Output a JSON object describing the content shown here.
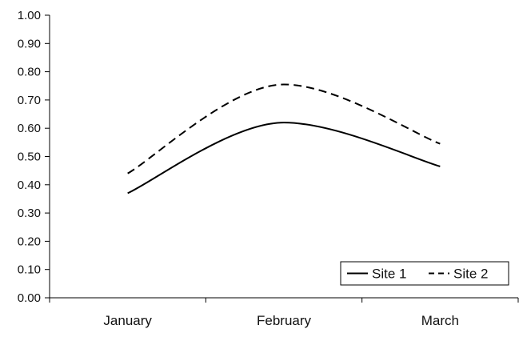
{
  "chart_data": {
    "type": "line",
    "categories": [
      "January",
      "February",
      "March"
    ],
    "series": [
      {
        "name": "Site 1",
        "values": [
          0.37,
          0.62,
          0.465
        ],
        "line_style": "solid",
        "color": "#000000"
      },
      {
        "name": "Site 2",
        "values": [
          0.44,
          0.755,
          0.545
        ],
        "line_style": "dashed",
        "color": "#000000"
      }
    ],
    "ylim": [
      0,
      1
    ],
    "yticks": [
      "0.00",
      "0.10",
      "0.20",
      "0.30",
      "0.40",
      "0.50",
      "0.60",
      "0.70",
      "0.80",
      "0.90",
      "1.00"
    ],
    "grid": false,
    "legend": "bottom-right",
    "smoothed": true
  }
}
